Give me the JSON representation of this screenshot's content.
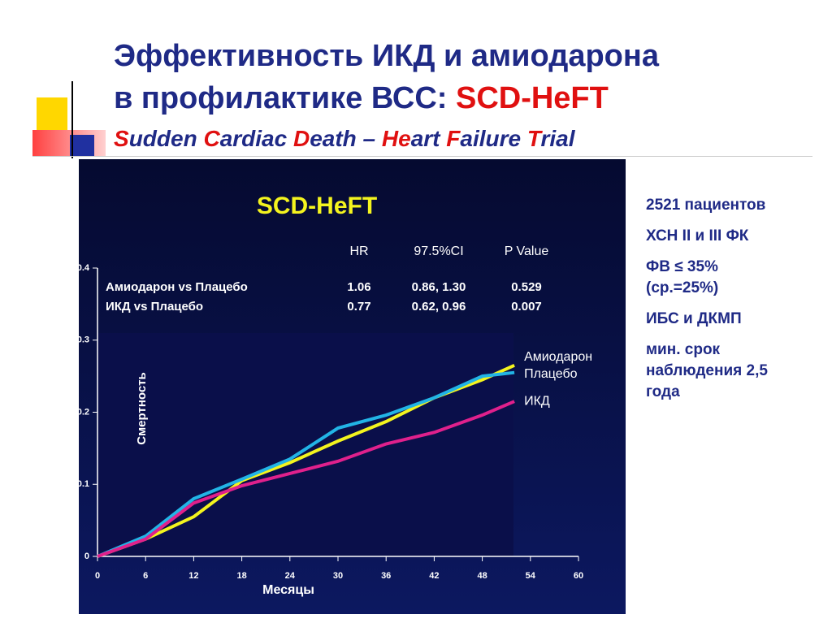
{
  "slide": {
    "title_line1": "Эффективность ИКД и амиодарона",
    "title_line2": "в профилактике ВСС: ",
    "title_highlight": "SCD-HeFT",
    "subtitle_parts": [
      "S",
      "udden ",
      "C",
      "ardiac ",
      "D",
      "eath – ",
      "He",
      "art ",
      "F",
      "ailure ",
      "T",
      "rial"
    ],
    "facts": [
      "2521 пациентов",
      "ХСН II и III ФК",
      "ФВ ≤ 35% (ср.=25%)",
      "ИБС и ДКМП",
      "мин. срок наблюдения 2,5 года"
    ]
  },
  "chart_data": {
    "type": "line",
    "title": "SCD-HeFT",
    "x_label": "Месяцы",
    "y_label": "Смертность",
    "stats_table": {
      "columns": [
        "HR",
        "97.5%CI",
        "P Value"
      ],
      "rows": [
        [
          "Амиодарон vs Плацебо",
          "1.06",
          "0.86, 1.30",
          "0.529"
        ],
        [
          "ИКД vs Плацебо",
          "0.77",
          "0.62, 0.96",
          "0.007"
        ]
      ]
    },
    "x": [
      0,
      6,
      12,
      18,
      24,
      30,
      36,
      42,
      48,
      52
    ],
    "series": [
      {
        "name": "Амиодарон",
        "color": "#f4f41e",
        "values": [
          0,
          0.024,
          0.055,
          0.105,
          0.13,
          0.16,
          0.187,
          0.22,
          0.245,
          0.265
        ]
      },
      {
        "name": "Плацебо",
        "color": "#22b4e6",
        "values": [
          0,
          0.028,
          0.08,
          0.107,
          0.135,
          0.178,
          0.196,
          0.22,
          0.25,
          0.255
        ]
      },
      {
        "name": "ИКД",
        "color": "#e0208c",
        "values": [
          0,
          0.024,
          0.074,
          0.098,
          0.115,
          0.132,
          0.156,
          0.172,
          0.196,
          0.215
        ]
      }
    ],
    "xlim": [
      0,
      60
    ],
    "xticks": [
      0,
      6,
      12,
      18,
      24,
      30,
      36,
      42,
      48,
      54,
      60
    ],
    "ylim": [
      0,
      0.4
    ],
    "yticks": [
      0,
      0.1,
      0.2,
      0.3,
      0.4
    ]
  }
}
